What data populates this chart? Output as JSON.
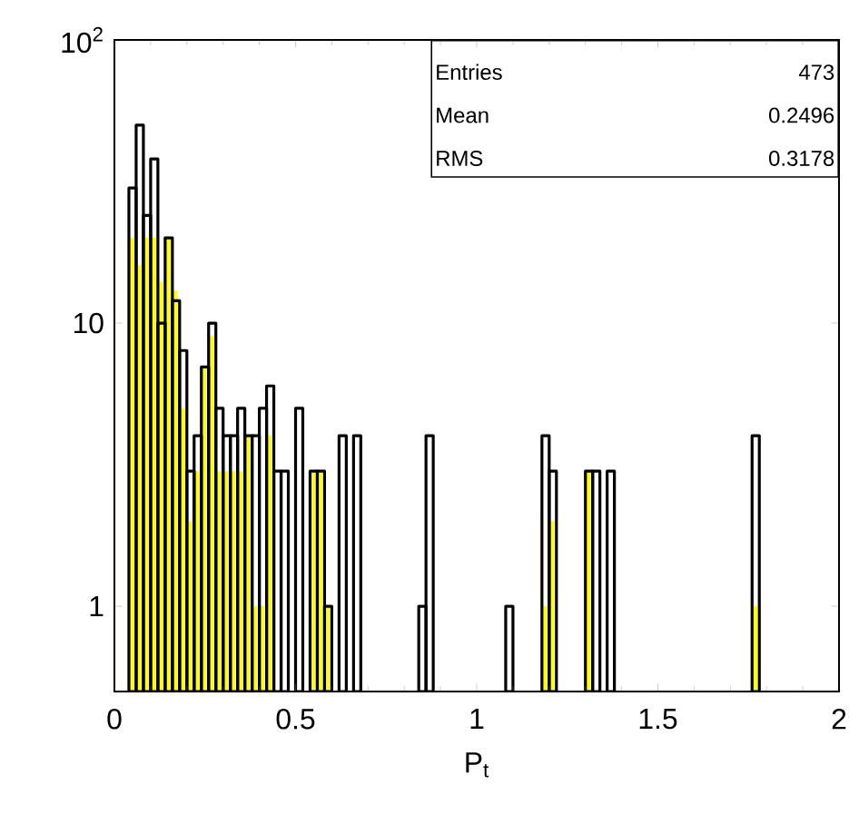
{
  "chart_data": {
    "type": "histogram",
    "xlabel": "P$_{t}$",
    "log": "y",
    "grid": false,
    "xlim": [
      0,
      2
    ],
    "ylim": [
      0.5,
      100
    ],
    "xticks": [
      0,
      0.5,
      1,
      1.5,
      2
    ],
    "yticks": [
      1,
      10,
      {
        "value": 100,
        "label": "10$^{2}$"
      }
    ],
    "bins": [
      0,
      0.02,
      0.04,
      0.06,
      0.08,
      0.1,
      0.12,
      0.14,
      0.16,
      0.18,
      0.2,
      0.22,
      0.24,
      0.26,
      0.28,
      0.3,
      0.32,
      0.34,
      0.36,
      0.38,
      0.4,
      0.42,
      0.44,
      0.46,
      0.48,
      0.5,
      0.52,
      0.54,
      0.56,
      0.58,
      0.6,
      0.62,
      0.64,
      0.66,
      0.68,
      0.7,
      0.72,
      0.74,
      0.76,
      0.78,
      0.8,
      0.82,
      0.84,
      0.86,
      0.88,
      0.9,
      0.92,
      0.94,
      0.96,
      0.98,
      1,
      1.02,
      1.04,
      1.06,
      1.08,
      1.1,
      1.12,
      1.14,
      1.16,
      1.18,
      1.2,
      1.22,
      1.24,
      1.26,
      1.28,
      1.3,
      1.32,
      1.34,
      1.36,
      1.38,
      1.4,
      1.42,
      1.44,
      1.46,
      1.48,
      1.5,
      1.52,
      1.54,
      1.56,
      1.58,
      1.6,
      1.62,
      1.64,
      1.66,
      1.68,
      1.7,
      1.72,
      1.74,
      1.76,
      1.78,
      1.8,
      1.82,
      1.84,
      1.86,
      1.88,
      1.9,
      1.92,
      1.94,
      1.96,
      1.98,
      2
    ],
    "series": [
      {
        "color": "#000000",
        "values": [
          null,
          null,
          30,
          50,
          24,
          38,
          10,
          20,
          12,
          8,
          3,
          4,
          7,
          10,
          5,
          4,
          4,
          5,
          4,
          4,
          5,
          6,
          3,
          3,
          null,
          5,
          null,
          3,
          3,
          1,
          null,
          4,
          null,
          4,
          null,
          null,
          null,
          null,
          null,
          null,
          null,
          null,
          1,
          4,
          null,
          null,
          null,
          null,
          null,
          null,
          null,
          null,
          null,
          null,
          1,
          null,
          null,
          null,
          null,
          4,
          3,
          null,
          null,
          null,
          null,
          3,
          3,
          null,
          3,
          null,
          null,
          null,
          null,
          null,
          null,
          null,
          null,
          null,
          null,
          null,
          null,
          null,
          null,
          null,
          null,
          null,
          null,
          null,
          4,
          null,
          null,
          null,
          null,
          null,
          null,
          null,
          null,
          null,
          null,
          null
        ]
      },
      {
        "color": "#ffff00",
        "values": [
          null,
          null,
          20,
          16,
          20,
          20,
          14,
          20,
          13,
          5,
          2,
          3,
          7,
          9,
          3,
          3,
          3,
          3,
          4,
          1,
          1,
          4,
          null,
          null,
          null,
          null,
          null,
          3,
          3,
          1,
          null,
          null,
          null,
          null,
          null,
          null,
          null,
          null,
          null,
          null,
          null,
          null,
          null,
          null,
          null,
          null,
          null,
          null,
          null,
          null,
          null,
          null,
          null,
          null,
          null,
          null,
          null,
          null,
          null,
          1,
          2,
          null,
          null,
          null,
          null,
          3,
          null,
          null,
          null,
          null,
          null,
          null,
          null,
          null,
          null,
          null,
          null,
          null,
          null,
          null,
          null,
          null,
          null,
          null,
          null,
          null,
          null,
          null,
          1,
          null,
          null,
          null,
          null,
          null,
          null,
          null,
          null,
          null,
          null,
          null
        ]
      }
    ],
    "annotations": [
      "Entries",
      "473",
      "Mean",
      "0.2496",
      "RMS",
      "0.3178"
    ]
  }
}
